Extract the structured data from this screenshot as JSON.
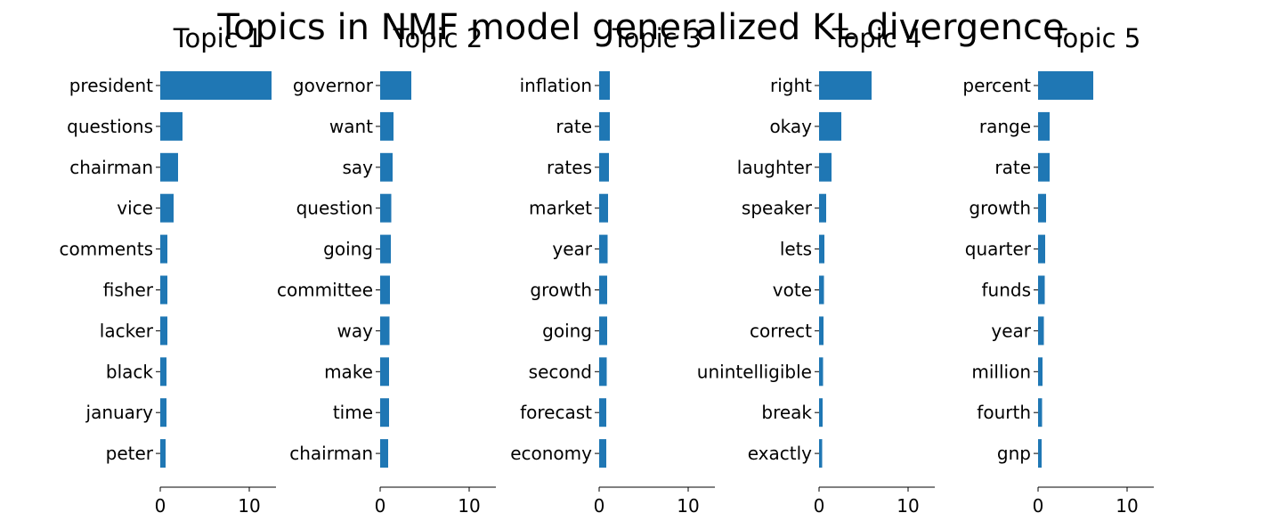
{
  "chart_data": {
    "type": "bar",
    "orientation": "horizontal",
    "title": "Topics in NMF model generalized KL divergence",
    "bar_color": "#1f77b4",
    "xlim": [
      0,
      13
    ],
    "xticks": [
      0,
      10
    ],
    "xtick_labels": [
      "0",
      "10"
    ],
    "grid": false,
    "panels": [
      {
        "title": "Topic 1",
        "categories": [
          "president",
          "questions",
          "chairman",
          "vice",
          "comments",
          "fisher",
          "lacker",
          "black",
          "january",
          "peter"
        ],
        "values": [
          12.5,
          2.5,
          2.0,
          1.5,
          0.8,
          0.8,
          0.8,
          0.7,
          0.7,
          0.6
        ]
      },
      {
        "title": "Topic 2",
        "categories": [
          "governor",
          "want",
          "say",
          "question",
          "going",
          "committee",
          "way",
          "make",
          "time",
          "chairman"
        ],
        "values": [
          3.5,
          1.5,
          1.4,
          1.25,
          1.2,
          1.1,
          1.05,
          1.0,
          1.0,
          0.9
        ]
      },
      {
        "title": "Topic 3",
        "categories": [
          "inflation",
          "rate",
          "rates",
          "market",
          "year",
          "growth",
          "going",
          "second",
          "forecast",
          "economy"
        ],
        "values": [
          1.2,
          1.2,
          1.1,
          1.0,
          0.95,
          0.9,
          0.9,
          0.85,
          0.8,
          0.8
        ]
      },
      {
        "title": "Topic 4",
        "categories": [
          "right",
          "okay",
          "laughter",
          "speaker",
          "lets",
          "vote",
          "correct",
          "unintelligible",
          "break",
          "exactly"
        ],
        "values": [
          5.9,
          2.5,
          1.4,
          0.8,
          0.6,
          0.55,
          0.5,
          0.45,
          0.4,
          0.35
        ]
      },
      {
        "title": "Topic 5",
        "categories": [
          "percent",
          "range",
          "rate",
          "growth",
          "quarter",
          "funds",
          "year",
          "million",
          "fourth",
          "gnp"
        ],
        "values": [
          6.2,
          1.3,
          1.3,
          0.9,
          0.8,
          0.75,
          0.65,
          0.5,
          0.45,
          0.4
        ]
      }
    ]
  }
}
